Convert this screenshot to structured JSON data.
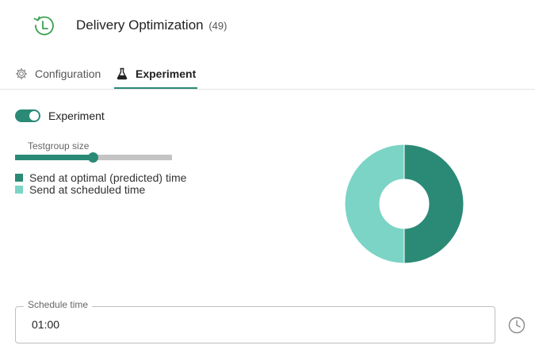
{
  "header": {
    "title": "Delivery Optimization",
    "count": "(49)",
    "icon": "history-icon"
  },
  "tabs": [
    {
      "label": "Configuration",
      "icon": "gear-icon",
      "active": false
    },
    {
      "label": "Experiment",
      "icon": "flask-icon",
      "active": true
    }
  ],
  "experiment": {
    "toggle_label": "Experiment",
    "toggle_on": true,
    "slider_label": "Testgroup size",
    "slider_value": 0.5
  },
  "legend": [
    {
      "label": "Send at optimal (predicted) time",
      "color": "#2a8a76"
    },
    {
      "label": "Send at scheduled time",
      "color": "#7bd4c5"
    }
  ],
  "chart_data": {
    "type": "pie",
    "categories": [
      "Send at optimal (predicted) time",
      "Send at scheduled time"
    ],
    "values": [
      50,
      50
    ],
    "colors": [
      "#2a8a76",
      "#7bd4c5"
    ],
    "donut": true
  },
  "schedule": {
    "label": "Schedule time",
    "value": "01:00",
    "icon": "clock-icon"
  },
  "colors": {
    "accent": "#2a8a76",
    "accent_light": "#7bd4c5",
    "icon_green": "#3aa152"
  }
}
